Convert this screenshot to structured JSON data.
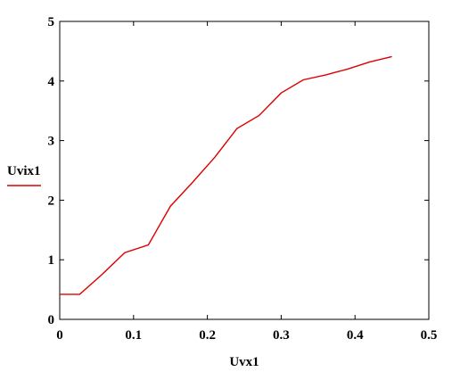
{
  "chart_data": {
    "type": "line",
    "xlabel": "Uvx1",
    "ylabel": "",
    "xlim": [
      0,
      0.5
    ],
    "ylim": [
      0,
      5
    ],
    "grid": false,
    "legend": "left",
    "x_ticks": [
      "0",
      "0.1",
      "0.2",
      "0.3",
      "0.4",
      "0.5"
    ],
    "y_ticks": [
      "0",
      "1",
      "2",
      "3",
      "4",
      "5"
    ],
    "series": [
      {
        "name": "Uvix1",
        "color": "#dd0000",
        "x": [
          0,
          0.027,
          0.057,
          0.088,
          0.12,
          0.15,
          0.18,
          0.21,
          0.24,
          0.27,
          0.3,
          0.33,
          0.36,
          0.39,
          0.42,
          0.45
        ],
        "y": [
          0.42,
          0.42,
          0.75,
          1.12,
          1.25,
          1.9,
          2.3,
          2.72,
          3.2,
          3.42,
          3.8,
          4.02,
          4.1,
          4.2,
          4.32,
          4.41
        ]
      }
    ]
  }
}
